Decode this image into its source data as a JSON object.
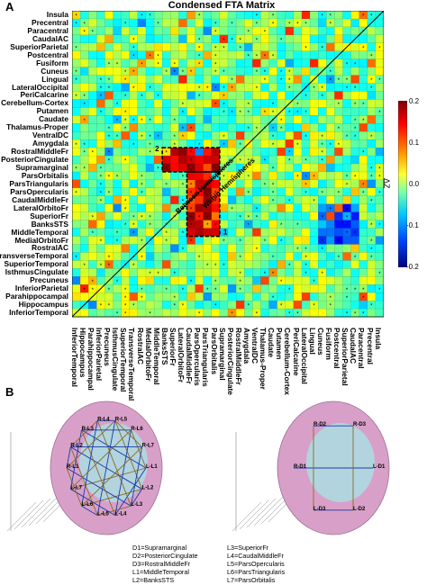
{
  "panel_a": {
    "label": "A",
    "title": "Condensed FTA Matrix",
    "regions": [
      "Insula",
      "Precentral",
      "Paracentral",
      "CaudalAC",
      "SuperiorParietal",
      "Postcentral",
      "Fusiform",
      "Cuneus",
      "Lingual",
      "LateralOccipital",
      "PeriCalcarine",
      "Cerebellum-Cortex",
      "Putamen",
      "Caudate",
      "Thalamus-Proper",
      "VentralDC",
      "Amygdala",
      "RostralMiddleFr",
      "PosteriorCingulate",
      "Supramarginal",
      "ParsOrbitalis",
      "ParsTriangularis",
      "ParsOpercularis",
      "CaudalMiddleFr",
      "LateralOrbitoFr",
      "SuperiorFr",
      "BanksSTS",
      "MiddleTemporal",
      "MedialOrbitoFr",
      "RostralAC",
      "TransverseTemporal",
      "SuperiorTemporal",
      "IsthmusCingulate",
      "Precuneus",
      "InferiorParietal",
      "Parahippocampal",
      "Hippocampus",
      "InferiorTemporal"
    ],
    "colorbar": {
      "label": "ΔZ",
      "ticks": [
        "0.2",
        "0.1",
        "0.0",
        "-0.1",
        "-0.2"
      ]
    },
    "annotations": {
      "between": "Between Hemispheres",
      "within": "Within Hemispheres",
      "box1": "1",
      "box2": "2"
    }
  },
  "panel_b": {
    "label": "B",
    "legend_left": [
      "D1=Supramarginal",
      "D2=PosteriorCingulate",
      "D3=RostralMiddleFr",
      "L1=MiddleTemporal",
      "L2=BanksSTS"
    ],
    "legend_right": [
      "L3=SuperiorFr",
      "L4=CaudalMiddleFr",
      "L5=ParsOpercularis",
      "L6=ParsTriangularis",
      "L7=ParsOrbitalis"
    ],
    "left_nodes": [
      "L-L1",
      "L-L2",
      "L-L3",
      "L-L4",
      "L-L5",
      "L-L6",
      "L-L7",
      "R-L1",
      "R-L2",
      "R-L3",
      "R-L4",
      "R-L5",
      "R-L6",
      "R-L7"
    ],
    "right_nodes": [
      "L-D1",
      "L-D2",
      "L-D3",
      "R-D1",
      "R-D2",
      "R-D3"
    ],
    "colors": {
      "brain_pink": "#d8a0c8",
      "brain_cyan": "#a6e6e6",
      "line_blue": "#1a3aa8",
      "line_brown": "#8a6a2a"
    }
  }
}
